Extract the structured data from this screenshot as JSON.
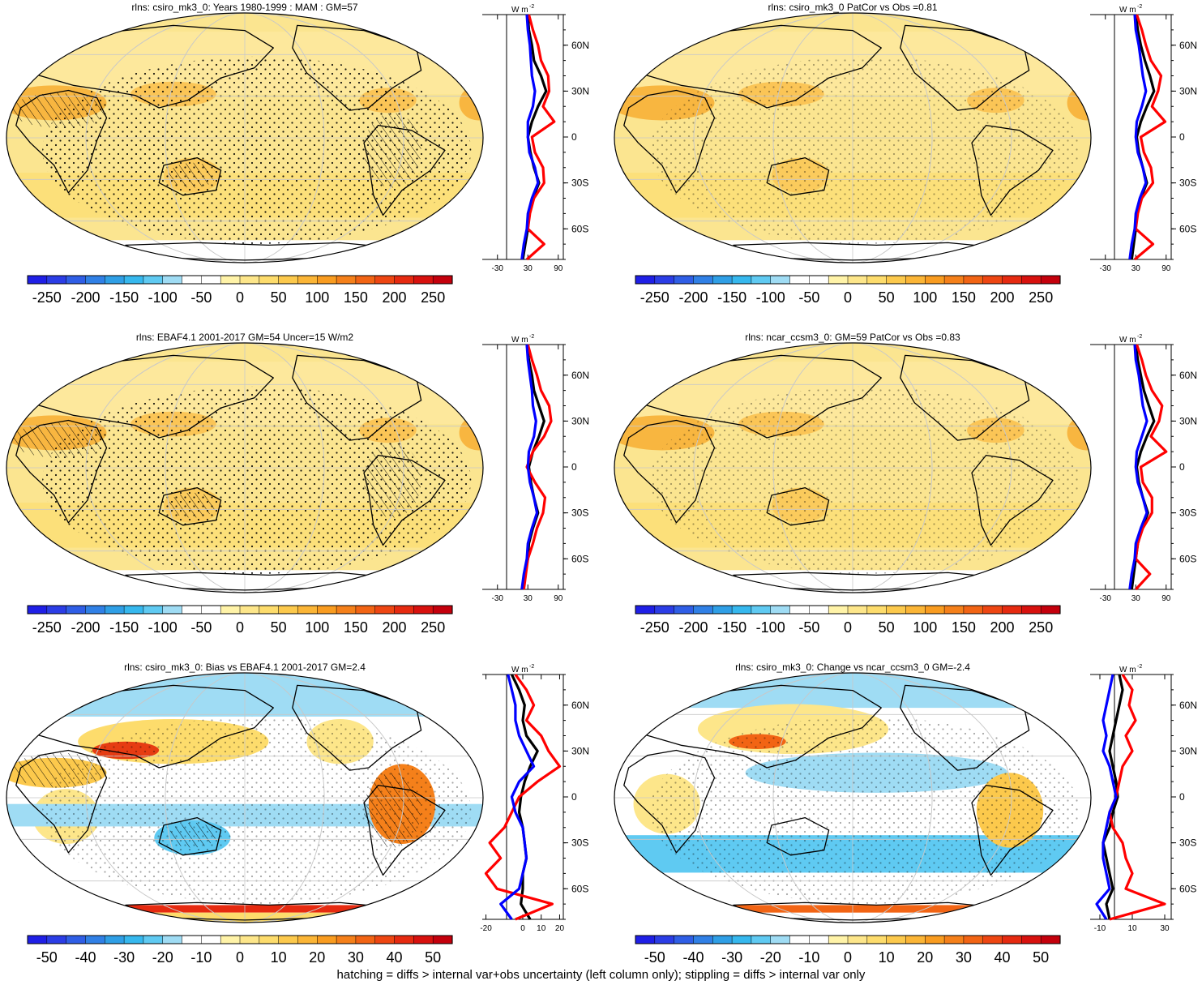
{
  "footer_note": "hatching = diffs > internal var+obs uncertainty (left column only); stippling = diffs > internal var only",
  "colors": {
    "ocean_base": "#fbe58e",
    "land_outline": "#000000",
    "zonal_model": "#000000",
    "zonal_obs": "#ff0000",
    "zonal_other": "#0000ff",
    "grid": "#c8c8c8"
  },
  "colorbars": {
    "absolute": {
      "ticks": [
        "-250",
        "-200",
        "-150",
        "-100",
        "-50",
        "0",
        "50",
        "100",
        "150",
        "200",
        "250"
      ],
      "colors": [
        "#1f1fe6",
        "#2b3de6",
        "#2f5ee6",
        "#3080e6",
        "#2f9fe6",
        "#36b8ee",
        "#5fcaf2",
        "#9fdcf4",
        "#ffffff",
        "#ffffff",
        "#fff3a8",
        "#fde68a",
        "#fddc6c",
        "#fcc94c",
        "#fbb536",
        "#f99c20",
        "#f5801a",
        "#f26414",
        "#ee4612",
        "#e62a10",
        "#d8110e",
        "#c4000c"
      ]
    },
    "difference": {
      "ticks": [
        "-50",
        "-40",
        "-30",
        "-20",
        "-10",
        "0",
        "10",
        "20",
        "30",
        "40",
        "50"
      ],
      "colors": [
        "#1f1fe6",
        "#2b3de6",
        "#2f5ee6",
        "#3080e6",
        "#2f9fe6",
        "#36b8ee",
        "#5fcaf2",
        "#9fdcf4",
        "#ffffff",
        "#ffffff",
        "#fff3a8",
        "#fde68a",
        "#fddc6c",
        "#fcc94c",
        "#fbb536",
        "#f99c20",
        "#f5801a",
        "#f26414",
        "#ee4612",
        "#e62a10",
        "#d8110e",
        "#c4000c"
      ]
    }
  },
  "chart_data": [
    {
      "type": "heatmap",
      "title": "rlns: csiro_mk3_0: Years 1980-1999 : MAM : GM=57",
      "colorbar": "absolute",
      "map_pattern": "warm",
      "hatching": true,
      "zonal_panel": {
        "type": "line",
        "unit_label": "W m",
        "unit_exp": "-2",
        "xticks": [
          "-30",
          "30",
          "90"
        ],
        "xlim": [
          -60,
          100
        ],
        "lat_ticks": [
          "60N",
          "30N",
          "0",
          "30S",
          "60S"
        ],
        "lat_values": [
          60,
          30,
          0,
          -30,
          -60
        ],
        "series": [
          {
            "color": "#000000",
            "lat": [
              80,
              70,
              60,
              50,
              40,
              30,
              20,
              10,
              0,
              -10,
              -20,
              -30,
              -40,
              -50,
              -60,
              -70,
              -80
            ],
            "values": [
              30,
              32,
              38,
              42,
              56,
              66,
              50,
              38,
              30,
              35,
              42,
              52,
              40,
              32,
              30,
              25,
              20
            ]
          },
          {
            "color": "#ff0000",
            "lat": [
              80,
              70,
              60,
              50,
              40,
              30,
              20,
              10,
              0,
              -10,
              -20,
              -30,
              -40,
              -50,
              -60,
              -70,
              -80
            ],
            "values": [
              32,
              40,
              50,
              56,
              70,
              72,
              60,
              82,
              38,
              44,
              60,
              62,
              42,
              34,
              30,
              62,
              28
            ]
          },
          {
            "color": "#0000ff",
            "lat": [
              80,
              70,
              60,
              50,
              40,
              30,
              20,
              10,
              0,
              -10,
              -20,
              -30,
              -40,
              -50,
              -60,
              -70,
              -80
            ],
            "values": [
              28,
              30,
              34,
              36,
              38,
              44,
              40,
              30,
              30,
              33,
              44,
              50,
              38,
              30,
              28,
              22,
              18
            ]
          }
        ]
      }
    },
    {
      "type": "heatmap",
      "title": "rlns: csiro_mk3_0 PatCor vs Obs =0.81",
      "colorbar": "absolute",
      "map_pattern": "warm",
      "hatching": false,
      "zonal_panel": {
        "type": "line",
        "unit_label": "W m",
        "unit_exp": "-2",
        "xticks": [
          "-30",
          "30",
          "90"
        ],
        "xlim": [
          -60,
          100
        ],
        "lat_ticks": [
          "60N",
          "30N",
          "0",
          "30S",
          "60S"
        ],
        "lat_values": [
          60,
          30,
          0,
          -30,
          -60
        ],
        "series": [
          {
            "color": "#000000",
            "lat": [
              80,
              70,
              60,
              50,
              40,
              30,
              20,
              10,
              0,
              -10,
              -20,
              -30,
              -40,
              -50,
              -60,
              -70,
              -80
            ],
            "values": [
              30,
              34,
              40,
              48,
              58,
              66,
              52,
              40,
              32,
              36,
              44,
              52,
              40,
              32,
              30,
              26,
              22
            ]
          },
          {
            "color": "#ff0000",
            "lat": [
              80,
              70,
              60,
              50,
              40,
              30,
              20,
              10,
              0,
              -10,
              -20,
              -30,
              -40,
              -50,
              -60,
              -70,
              -80
            ],
            "values": [
              32,
              42,
              50,
              60,
              80,
              74,
              62,
              88,
              40,
              46,
              60,
              64,
              42,
              34,
              30,
              64,
              28
            ]
          },
          {
            "color": "#0000ff",
            "lat": [
              80,
              70,
              60,
              50,
              40,
              30,
              20,
              10,
              0,
              -10,
              -20,
              -30,
              -40,
              -50,
              -60,
              -70,
              -80
            ],
            "values": [
              28,
              30,
              36,
              40,
              44,
              50,
              42,
              32,
              30,
              34,
              44,
              50,
              38,
              30,
              28,
              22,
              18
            ]
          }
        ]
      }
    },
    {
      "type": "heatmap",
      "title": "rlns: EBAF4.1 2001-2017 GM=54 Uncer=15 W/m2",
      "colorbar": "absolute",
      "map_pattern": "warm",
      "hatching": true,
      "zonal_panel": {
        "type": "line",
        "unit_label": "W m",
        "unit_exp": "-2",
        "xticks": [
          "-30",
          "30",
          "90"
        ],
        "xlim": [
          -60,
          100
        ],
        "lat_ticks": [
          "60N",
          "30N",
          "0",
          "30S",
          "60S"
        ],
        "lat_values": [
          60,
          30,
          0,
          -30,
          -60
        ],
        "series": [
          {
            "color": "#000000",
            "lat": [
              80,
              70,
              60,
              50,
              40,
              30,
              20,
              10,
              0,
              -10,
              -20,
              -30,
              -40,
              -50,
              -60,
              -70,
              -80
            ],
            "values": [
              28,
              32,
              38,
              42,
              52,
              62,
              52,
              40,
              32,
              36,
              42,
              50,
              40,
              32,
              30,
              24,
              20
            ]
          },
          {
            "color": "#ff0000",
            "lat": [
              80,
              70,
              60,
              50,
              40,
              30,
              20,
              10,
              0,
              -10,
              -20,
              -30,
              -40,
              -50,
              -60,
              -70,
              -80
            ],
            "values": [
              30,
              38,
              48,
              56,
              72,
              76,
              62,
              40,
              28,
              44,
              64,
              60,
              48,
              40,
              30,
              26,
              22
            ]
          },
          {
            "color": "#0000ff",
            "lat": [
              80,
              70,
              60,
              50,
              40,
              30,
              20,
              10,
              0,
              -10,
              -20,
              -30,
              -40,
              -50,
              -60,
              -70,
              -80
            ],
            "values": [
              28,
              30,
              34,
              38,
              40,
              46,
              42,
              32,
              30,
              34,
              42,
              48,
              38,
              30,
              28,
              22,
              18
            ]
          }
        ]
      }
    },
    {
      "type": "heatmap",
      "title": "rlns: ncar_ccsm3_0: GM=59 PatCor vs Obs =0.83",
      "colorbar": "absolute",
      "map_pattern": "warm",
      "hatching": false,
      "zonal_panel": {
        "type": "line",
        "unit_label": "W m",
        "unit_exp": "-2",
        "xticks": [
          "-30",
          "30",
          "90"
        ],
        "xlim": [
          -60,
          100
        ],
        "lat_ticks": [
          "60N",
          "30N",
          "0",
          "30S",
          "60S"
        ],
        "lat_values": [
          60,
          30,
          0,
          -30,
          -60
        ],
        "series": [
          {
            "color": "#000000",
            "lat": [
              80,
              70,
              60,
              50,
              40,
              30,
              20,
              10,
              0,
              -10,
              -20,
              -30,
              -40,
              -50,
              -60,
              -70,
              -80
            ],
            "values": [
              30,
              34,
              40,
              46,
              56,
              66,
              52,
              40,
              32,
              36,
              44,
              54,
              42,
              34,
              30,
              26,
              22
            ]
          },
          {
            "color": "#ff0000",
            "lat": [
              80,
              70,
              60,
              50,
              40,
              30,
              20,
              10,
              0,
              -10,
              -20,
              -30,
              -40,
              -50,
              -60,
              -70,
              -80
            ],
            "values": [
              32,
              42,
              50,
              62,
              82,
              76,
              60,
              90,
              40,
              44,
              62,
              62,
              44,
              34,
              30,
              58,
              30
            ]
          },
          {
            "color": "#0000ff",
            "lat": [
              80,
              70,
              60,
              50,
              40,
              30,
              20,
              10,
              0,
              -10,
              -20,
              -30,
              -40,
              -50,
              -60,
              -70,
              -80
            ],
            "values": [
              28,
              30,
              36,
              40,
              44,
              52,
              42,
              32,
              30,
              34,
              44,
              52,
              40,
              30,
              28,
              22,
              18
            ]
          }
        ]
      }
    },
    {
      "type": "heatmap",
      "title": "rlns: csiro_mk3_0: Bias vs EBAF4.1 2001-2017 GM=2.4",
      "colorbar": "difference",
      "map_pattern": "bias",
      "hatching": true,
      "zonal_panel": {
        "type": "line",
        "unit_label": "W m",
        "unit_exp": "-2",
        "xticks": [
          "-20",
          "0",
          "10",
          "20"
        ],
        "xlim": [
          -22,
          22
        ],
        "lat_ticks": [
          "60N",
          "30N",
          "0",
          "30S",
          "60S"
        ],
        "lat_values": [
          60,
          30,
          0,
          -30,
          -60
        ],
        "series": [
          {
            "color": "#000000",
            "lat": [
              80,
              70,
              60,
              50,
              40,
              30,
              20,
              10,
              0,
              -10,
              -20,
              -30,
              -40,
              -50,
              -60,
              -70,
              -80
            ],
            "values": [
              -6,
              -2,
              1,
              0,
              2,
              8,
              4,
              1,
              -1,
              -2,
              0,
              1,
              2,
              0,
              0,
              -1,
              4
            ]
          },
          {
            "color": "#ff0000",
            "lat": [
              80,
              70,
              60,
              50,
              40,
              30,
              20,
              10,
              0,
              -10,
              -20,
              -30,
              -40,
              -50,
              -60,
              -70,
              -80
            ],
            "values": [
              -4,
              2,
              6,
              2,
              10,
              14,
              20,
              8,
              -2,
              -6,
              -10,
              -18,
              -12,
              -20,
              -14,
              16,
              -4
            ]
          },
          {
            "color": "#0000ff",
            "lat": [
              80,
              70,
              60,
              50,
              40,
              30,
              20,
              10,
              0,
              -10,
              -20,
              -30,
              -40,
              -50,
              -60,
              -70,
              -80
            ],
            "values": [
              -8,
              -6,
              -4,
              -4,
              -2,
              2,
              6,
              -2,
              -6,
              -4,
              0,
              1,
              2,
              0,
              -2,
              -12,
              -6
            ]
          }
        ]
      }
    },
    {
      "type": "heatmap",
      "title": "rlns: csiro_mk3_0: Change vs ncar_ccsm3_0 GM=-2.4",
      "colorbar": "difference",
      "map_pattern": "change",
      "hatching": false,
      "zonal_panel": {
        "type": "line",
        "unit_label": "W m",
        "unit_exp": "-2",
        "xticks": [
          "-10",
          "10",
          "30"
        ],
        "xlim": [
          -16,
          34
        ],
        "lat_ticks": [
          "60N",
          "30N",
          "0",
          "30S",
          "60S"
        ],
        "lat_values": [
          60,
          30,
          0,
          -30,
          -60
        ],
        "series": [
          {
            "color": "#000000",
            "lat": [
              80,
              70,
              60,
              50,
              40,
              30,
              20,
              10,
              0,
              -10,
              -20,
              -30,
              -40,
              -50,
              -60,
              -70,
              -80
            ],
            "values": [
              2,
              4,
              2,
              0,
              -2,
              -4,
              -2,
              0,
              1,
              -2,
              -4,
              -8,
              -6,
              -4,
              -2,
              -6,
              -4
            ]
          },
          {
            "color": "#ff0000",
            "lat": [
              80,
              70,
              60,
              50,
              40,
              30,
              20,
              10,
              0,
              -10,
              -20,
              -30,
              -40,
              -50,
              -60,
              -70,
              -80
            ],
            "values": [
              4,
              10,
              8,
              12,
              6,
              10,
              4,
              2,
              0,
              -4,
              -2,
              4,
              6,
              10,
              6,
              30,
              -4
            ]
          },
          {
            "color": "#0000ff",
            "lat": [
              80,
              70,
              60,
              50,
              40,
              30,
              20,
              10,
              0,
              -10,
              -20,
              -30,
              -40,
              -50,
              -60,
              -70,
              -80
            ],
            "values": [
              -2,
              -4,
              -6,
              -8,
              -6,
              -8,
              -4,
              -2,
              0,
              -4,
              -6,
              -8,
              -8,
              -6,
              -4,
              -12,
              -6
            ]
          }
        ]
      }
    }
  ]
}
